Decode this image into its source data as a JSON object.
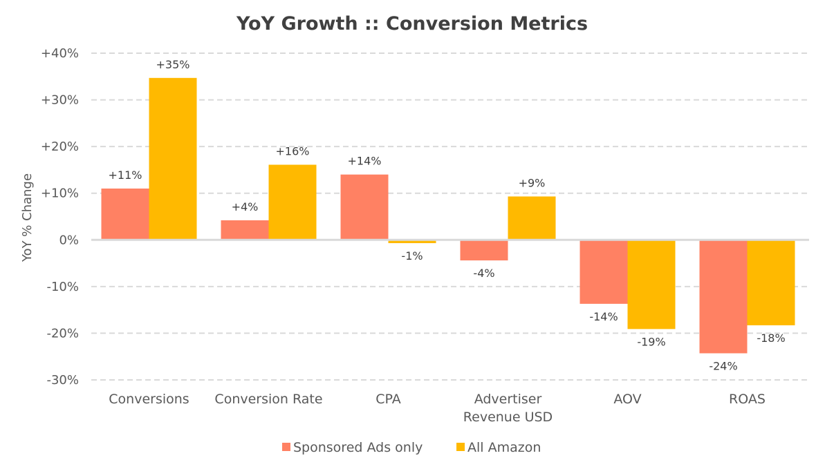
{
  "chart_data": {
    "type": "bar",
    "title": "YoY Growth :: Conversion Metrics",
    "ylabel": "YoY % Change",
    "xlabel": "",
    "ylim": [
      -30,
      40
    ],
    "yticks": [
      40,
      30,
      20,
      10,
      0,
      -10,
      -20,
      -30
    ],
    "ytick_labels": [
      "+40%",
      "+30%",
      "+20%",
      "+10%",
      "0%",
      "-10%",
      "-20%",
      "-30%"
    ],
    "grid": true,
    "legend_position": "bottom",
    "categories": [
      [
        "Conversions"
      ],
      [
        "Conversion Rate"
      ],
      [
        "CPA"
      ],
      [
        "Advertiser",
        "Revenue USD"
      ],
      [
        "AOV"
      ],
      [
        "ROAS"
      ]
    ],
    "series": [
      {
        "name": "Sponsored Ads only",
        "color": "#FF8163",
        "values": [
          11,
          4.2,
          14,
          -4.4,
          -13.7,
          -24.3
        ],
        "labels": [
          "+11%",
          "+4%",
          "+14%",
          "-4%",
          "-14%",
          "-24%"
        ]
      },
      {
        "name": "All Amazon",
        "color": "#FFB900",
        "values": [
          34.7,
          16.1,
          -0.7,
          9.3,
          -19.1,
          -18.3
        ],
        "labels": [
          "+35%",
          "+16%",
          "-1%",
          "+9%",
          "-19%",
          "-18%"
        ]
      }
    ]
  }
}
